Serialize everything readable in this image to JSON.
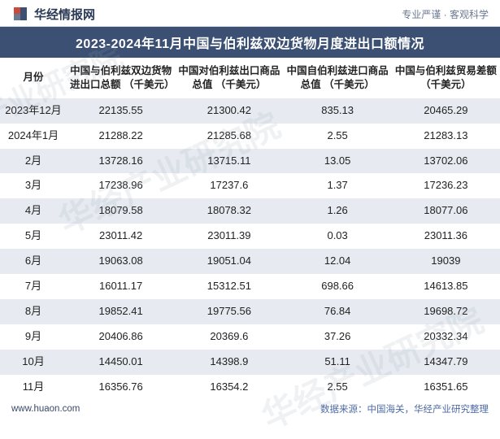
{
  "header": {
    "site_name": "华经情报网",
    "tagline": "专业严谨 · 客观科学"
  },
  "title": "2023-2024年11月中国与伯利兹双边货物月度进出口额情况",
  "columns": [
    "月份",
    "中国与伯利兹双边货物进出口总额\n（千美元）",
    "中国对伯利兹出口商品总值\n（千美元）",
    "中国自伯利兹进口商品总值\n（千美元）",
    "中国与伯利兹贸易差额\n（千美元）"
  ],
  "rows": [
    [
      "2023年12月",
      "22135.55",
      "21300.42",
      "835.13",
      "20465.29"
    ],
    [
      "2024年1月",
      "21288.22",
      "21285.68",
      "2.55",
      "21283.13"
    ],
    [
      "2月",
      "13728.16",
      "13715.11",
      "13.05",
      "13702.06"
    ],
    [
      "3月",
      "17238.96",
      "17237.6",
      "1.37",
      "17236.23"
    ],
    [
      "4月",
      "18079.58",
      "18078.32",
      "1.26",
      "18077.06"
    ],
    [
      "5月",
      "23011.42",
      "23011.39",
      "0.03",
      "23011.36"
    ],
    [
      "6月",
      "19063.08",
      "19051.04",
      "12.04",
      "19039"
    ],
    [
      "7月",
      "16011.17",
      "15312.51",
      "698.66",
      "14613.85"
    ],
    [
      "8月",
      "19852.41",
      "19775.56",
      "76.84",
      "19698.72"
    ],
    [
      "9月",
      "20406.86",
      "20369.6",
      "37.26",
      "20332.34"
    ],
    [
      "10月",
      "14450.01",
      "14398.9",
      "51.11",
      "14347.79"
    ],
    [
      "11月",
      "16356.76",
      "16354.2",
      "2.55",
      "16351.65"
    ]
  ],
  "footer": {
    "url": "www.huaon.com",
    "source": "数据来源：中国海关，华经产业研究整理"
  },
  "watermark": "华经产业研究院",
  "style": {
    "title_bg": "#3b5073",
    "title_fg": "#ffffff",
    "band_bg": "#e7ebf1",
    "text_color": "#222222",
    "header_border": "#d7dce3",
    "logo_red": "#c94a3b",
    "logo_blue": "#3b5073",
    "footer_src_color": "#4e6aa3"
  }
}
